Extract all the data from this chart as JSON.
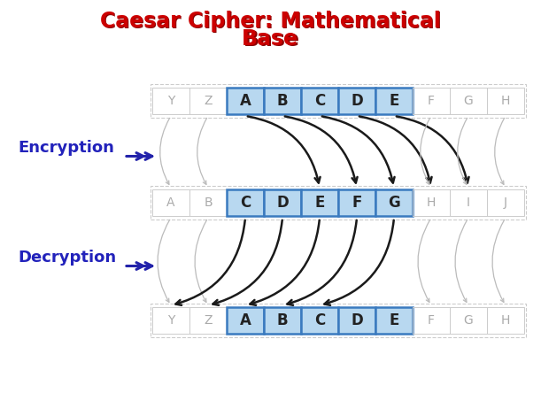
{
  "title_line1": "Caesar Cipher: Mathematical",
  "title_line2": "Base",
  "title_color": "#CC0000",
  "bg_color": "#ffffff",
  "row1_letters": [
    "Y",
    "Z",
    "A",
    "B",
    "C",
    "D",
    "E",
    "F",
    "G",
    "H"
  ],
  "row1_highlighted": [
    2,
    3,
    4,
    5,
    6
  ],
  "row2_letters": [
    "A",
    "B",
    "C",
    "D",
    "E",
    "F",
    "G",
    "H",
    "I",
    "J"
  ],
  "row2_highlighted": [
    2,
    3,
    4,
    5,
    6
  ],
  "row3_letters": [
    "Y",
    "Z",
    "A",
    "B",
    "C",
    "D",
    "E",
    "F",
    "G",
    "H"
  ],
  "row3_highlighted": [
    2,
    3,
    4,
    5,
    6
  ],
  "highlight_color": "#b8d8f0",
  "highlight_border": "#3a7abf",
  "dim_color": "#cccccc",
  "dim_text_color": "#aaaaaa",
  "normal_text_color": "#222222",
  "arrow_color_dark": "#1a1a1a",
  "arrow_color_dim": "#bbbbbb",
  "label_encryption": "Encryption",
  "label_decryption": "Decryption",
  "label_color": "#2222bb",
  "enc_connections_src": [
    2,
    3,
    4,
    5,
    6
  ],
  "enc_connections_dst": [
    4,
    5,
    6,
    7,
    8
  ],
  "dec_connections_src": [
    2,
    3,
    4,
    5,
    6
  ],
  "dec_connections_dst": [
    0,
    1,
    2,
    3,
    4
  ]
}
